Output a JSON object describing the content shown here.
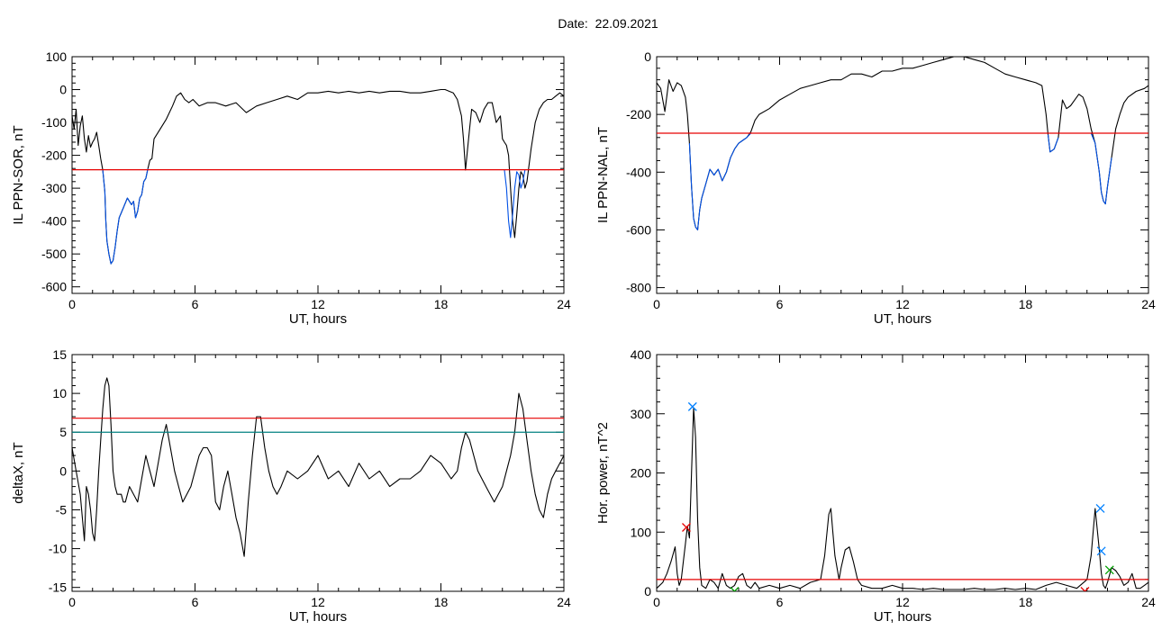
{
  "header": {
    "date_label": "Date:",
    "date_value": "22.09.2021"
  },
  "chart_data": [
    {
      "type": "line",
      "id": "sor",
      "ylabel": "IL PPN-SOR, nT",
      "xlabel": "UT, hours",
      "xlim": [
        0,
        24
      ],
      "ylim": [
        -620,
        100
      ],
      "xticks": [
        0,
        6,
        12,
        18,
        24
      ],
      "yticks": [
        100,
        0,
        -100,
        -200,
        -300,
        -400,
        -500,
        -600
      ],
      "threshold": {
        "value": -244,
        "color": "#e60000"
      },
      "series": [
        {
          "color": "#000000",
          "x": [
            0,
            0.1,
            0.2,
            0.3,
            0.4,
            0.5,
            0.6,
            0.7,
            0.8,
            0.9,
            1.0,
            1.1,
            1.2,
            1.3,
            1.4,
            1.5,
            1.6,
            1.65,
            1.7,
            1.8,
            1.9,
            2.0,
            2.1,
            2.2,
            2.3,
            2.5,
            2.7,
            2.9,
            3.0,
            3.1,
            3.2,
            3.3,
            3.4,
            3.5,
            3.6,
            3.7,
            3.8,
            3.9,
            4.0,
            4.3,
            4.6,
            4.9,
            5.1,
            5.3,
            5.5,
            5.7,
            5.9,
            6.2,
            6.6,
            7,
            7.5,
            8,
            8.5,
            9,
            9.5,
            10,
            10.5,
            11,
            11.5,
            12,
            12.5,
            13,
            13.5,
            14,
            14.5,
            15,
            15.5,
            16,
            16.5,
            17,
            17.5,
            18,
            18.2,
            18.4,
            18.6,
            18.8,
            19.0,
            19.1,
            19.2,
            19.3,
            19.4,
            19.5,
            19.7,
            19.9,
            20.1,
            20.3,
            20.5,
            20.7,
            20.9,
            21.0,
            21.1,
            21.2,
            21.3,
            21.4,
            21.5,
            21.6,
            21.7,
            21.8,
            21.9,
            22.0,
            22.1,
            22.2,
            22.4,
            22.6,
            22.8,
            23.0,
            23.2,
            23.4,
            23.6,
            23.8,
            24
          ],
          "y": [
            -80,
            -120,
            -60,
            -170,
            -110,
            -80,
            -150,
            -190,
            -140,
            -175,
            -160,
            -150,
            -130,
            -170,
            -210,
            -245,
            -310,
            -400,
            -460,
            -500,
            -530,
            -520,
            -480,
            -430,
            -390,
            -360,
            -330,
            -350,
            -340,
            -390,
            -370,
            -330,
            -320,
            -280,
            -270,
            -240,
            -215,
            -210,
            -150,
            -120,
            -90,
            -50,
            -20,
            -10,
            -30,
            -40,
            -30,
            -50,
            -40,
            -40,
            -50,
            -40,
            -70,
            -50,
            -40,
            -30,
            -20,
            -30,
            -10,
            -10,
            -5,
            -10,
            -5,
            -10,
            -5,
            -10,
            -5,
            -5,
            -10,
            -10,
            -5,
            0,
            0,
            -5,
            -10,
            -30,
            -80,
            -150,
            -245,
            -180,
            -120,
            -60,
            -70,
            -100,
            -60,
            -40,
            -40,
            -100,
            -80,
            -150,
            -160,
            -170,
            -200,
            -300,
            -400,
            -450,
            -380,
            -300,
            -250,
            -260,
            -300,
            -280,
            -180,
            -100,
            -60,
            -40,
            -30,
            -30,
            -20,
            -10,
            -20
          ]
        },
        {
          "color": "#0050e6",
          "x": [
            1.5,
            1.6,
            1.65,
            1.7,
            1.8,
            1.9,
            2.0,
            2.1,
            2.2,
            2.3,
            2.5,
            2.7,
            2.9,
            3.0,
            3.1,
            3.2,
            3.3,
            3.4,
            3.5,
            3.6,
            3.7
          ],
          "y": [
            -245,
            -310,
            -400,
            -460,
            -500,
            -530,
            -520,
            -480,
            -430,
            -390,
            -360,
            -330,
            -350,
            -340,
            -390,
            -370,
            -330,
            -320,
            -280,
            -270,
            -240
          ]
        },
        {
          "color": "#0050e6",
          "x": [
            21.1,
            21.2,
            21.3,
            21.4,
            21.5,
            21.6,
            21.7,
            21.8,
            21.9,
            22.0,
            22.1
          ],
          "y": [
            -245,
            -300,
            -400,
            -450,
            -380,
            -300,
            -250,
            -260,
            -300,
            -280,
            -245
          ]
        }
      ],
      "markers": []
    },
    {
      "type": "line",
      "id": "nal",
      "ylabel": "IL PPN-NAL, nT",
      "xlabel": "UT, hours",
      "xlim": [
        0,
        24
      ],
      "ylim": [
        -820,
        0
      ],
      "xticks": [
        0,
        6,
        12,
        18,
        24
      ],
      "yticks": [
        0,
        -200,
        -400,
        -600,
        -800
      ],
      "threshold": {
        "value": -265,
        "color": "#e60000"
      },
      "series": [
        {
          "color": "#000000",
          "x": [
            0,
            0.2,
            0.4,
            0.6,
            0.8,
            1.0,
            1.2,
            1.4,
            1.5,
            1.6,
            1.7,
            1.8,
            1.9,
            2.0,
            2.1,
            2.2,
            2.4,
            2.6,
            2.8,
            3.0,
            3.2,
            3.4,
            3.6,
            3.8,
            4.0,
            4.2,
            4.4,
            4.6,
            4.8,
            5.0,
            5.5,
            6,
            6.5,
            7,
            7.5,
            8,
            8.5,
            9,
            9.5,
            10,
            10.5,
            11,
            11.5,
            12,
            12.5,
            13,
            13.5,
            14,
            14.5,
            15,
            15.5,
            16,
            16.5,
            17,
            17.5,
            18,
            18.5,
            18.8,
            19.0,
            19.1,
            19.2,
            19.4,
            19.6,
            19.8,
            20.0,
            20.2,
            20.4,
            20.6,
            20.8,
            21.0,
            21.2,
            21.4,
            21.6,
            21.7,
            21.8,
            21.9,
            22.0,
            22.2,
            22.4,
            22.6,
            22.8,
            23.0,
            23.4,
            23.8,
            24
          ],
          "y": [
            -90,
            -110,
            -190,
            -80,
            -120,
            -90,
            -100,
            -140,
            -200,
            -300,
            -450,
            -560,
            -590,
            -600,
            -530,
            -490,
            -440,
            -390,
            -410,
            -390,
            -430,
            -400,
            -350,
            -320,
            -300,
            -290,
            -280,
            -260,
            -220,
            -200,
            -180,
            -150,
            -130,
            -110,
            -100,
            -90,
            -80,
            -80,
            -60,
            -60,
            -70,
            -50,
            -50,
            -40,
            -40,
            -30,
            -20,
            -10,
            0,
            0,
            -10,
            -20,
            -40,
            -60,
            -70,
            -80,
            -90,
            -100,
            -200,
            -270,
            -330,
            -320,
            -280,
            -150,
            -180,
            -170,
            -150,
            -130,
            -140,
            -180,
            -250,
            -300,
            -400,
            -470,
            -500,
            -510,
            -450,
            -350,
            -250,
            -200,
            -160,
            -140,
            -120,
            -110,
            -100
          ]
        },
        {
          "color": "#0050e6",
          "x": [
            1.6,
            1.7,
            1.8,
            1.9,
            2.0,
            2.1,
            2.2,
            2.4,
            2.6,
            2.8,
            3.0,
            3.2,
            3.4,
            3.6,
            3.8,
            4.0,
            4.2,
            4.4,
            4.6
          ],
          "y": [
            -300,
            -450,
            -560,
            -590,
            -600,
            -530,
            -490,
            -440,
            -390,
            -410,
            -390,
            -430,
            -400,
            -350,
            -320,
            -300,
            -290,
            -280,
            -265
          ]
        },
        {
          "color": "#0050e6",
          "x": [
            19.1,
            19.2,
            19.4,
            19.6
          ],
          "y": [
            -270,
            -330,
            -320,
            -280
          ]
        },
        {
          "color": "#0050e6",
          "x": [
            21.2,
            21.4,
            21.6,
            21.7,
            21.8,
            21.9,
            22.0,
            22.2
          ],
          "y": [
            -265,
            -300,
            -400,
            -470,
            -500,
            -510,
            -450,
            -350
          ]
        }
      ],
      "markers": []
    },
    {
      "type": "line",
      "id": "deltax",
      "ylabel": "deltaX, nT",
      "xlabel": "UT, hours",
      "xlim": [
        0,
        24
      ],
      "ylim": [
        -15.5,
        15
      ],
      "xticks": [
        0,
        6,
        12,
        18,
        24
      ],
      "yticks": [
        15,
        10,
        5,
        0,
        -5,
        -10,
        -15
      ],
      "threshold": {
        "value": 6.8,
        "color": "#e60000"
      },
      "threshold2": {
        "value": 5.0,
        "color": "#008080"
      },
      "series": [
        {
          "color": "#000000",
          "x": [
            0,
            0.2,
            0.4,
            0.5,
            0.6,
            0.7,
            0.8,
            0.9,
            1.0,
            1.1,
            1.2,
            1.3,
            1.4,
            1.5,
            1.6,
            1.7,
            1.8,
            1.9,
            2.0,
            2.1,
            2.2,
            2.3,
            2.4,
            2.5,
            2.6,
            2.8,
            3.0,
            3.2,
            3.4,
            3.6,
            3.8,
            4.0,
            4.2,
            4.4,
            4.6,
            4.8,
            5.0,
            5.2,
            5.4,
            5.6,
            5.8,
            6.0,
            6.2,
            6.4,
            6.6,
            6.8,
            7.0,
            7.2,
            7.4,
            7.6,
            7.8,
            8.0,
            8.2,
            8.4,
            8.6,
            8.8,
            9.0,
            9.2,
            9.4,
            9.6,
            9.8,
            10.0,
            10.2,
            10.5,
            11.0,
            11.5,
            12.0,
            12.5,
            13.0,
            13.5,
            14.0,
            14.5,
            15.0,
            15.5,
            16.0,
            16.5,
            17.0,
            17.5,
            18.0,
            18.5,
            18.8,
            19.0,
            19.2,
            19.4,
            19.6,
            19.8,
            20.0,
            20.2,
            20.4,
            20.6,
            20.8,
            21.0,
            21.2,
            21.4,
            21.6,
            21.8,
            22.0,
            22.2,
            22.4,
            22.6,
            22.8,
            23.0,
            23.2,
            23.4,
            23.6,
            23.8,
            24
          ],
          "y": [
            3,
            0,
            -3,
            -6,
            -9,
            -2,
            -3,
            -5,
            -8,
            -9,
            -5,
            0,
            4,
            8,
            11,
            12,
            11,
            6,
            0,
            -2,
            -3,
            -3,
            -3,
            -4,
            -4,
            -2,
            -3,
            -4,
            -1,
            2,
            0,
            -2,
            1,
            4,
            6,
            3,
            0,
            -2,
            -4,
            -3,
            -2,
            0,
            2,
            3,
            3,
            2,
            -4,
            -5,
            -2,
            0,
            -3,
            -6,
            -8,
            -11,
            -4,
            2,
            7,
            7,
            3,
            0,
            -2,
            -3,
            -2,
            0,
            -1,
            0,
            2,
            -1,
            0,
            -2,
            1,
            -1,
            0,
            -2,
            -1,
            -1,
            0,
            2,
            1,
            -1,
            0,
            3,
            5,
            4,
            2,
            0,
            -1,
            -2,
            -3,
            -4,
            -3,
            -2,
            0,
            2,
            5,
            10,
            8,
            4,
            0,
            -3,
            -5,
            -6,
            -3,
            -1,
            0,
            1,
            2
          ]
        }
      ],
      "markers": []
    },
    {
      "type": "line",
      "id": "power",
      "ylabel": "Hor. power, nT^2",
      "xlabel": "UT, hours",
      "xlim": [
        0,
        24
      ],
      "ylim": [
        0,
        400
      ],
      "xticks": [
        0,
        6,
        12,
        18,
        24
      ],
      "yticks": [
        400,
        300,
        200,
        100,
        0
      ],
      "threshold": {
        "value": 20,
        "color": "#e60000"
      },
      "series": [
        {
          "color": "#000000",
          "x": [
            0,
            0.3,
            0.5,
            0.7,
            0.9,
            1.0,
            1.1,
            1.2,
            1.3,
            1.4,
            1.5,
            1.6,
            1.7,
            1.8,
            1.9,
            2.0,
            2.1,
            2.2,
            2.4,
            2.6,
            2.8,
            3.0,
            3.2,
            3.4,
            3.6,
            3.8,
            4.0,
            4.2,
            4.4,
            4.6,
            4.8,
            5.0,
            5.5,
            6.0,
            6.5,
            7.0,
            7.5,
            8.0,
            8.2,
            8.4,
            8.5,
            8.6,
            8.7,
            8.8,
            8.9,
            9.0,
            9.2,
            9.4,
            9.6,
            9.8,
            10.0,
            10.5,
            11,
            11.5,
            12,
            12.5,
            13,
            13.5,
            14,
            14.5,
            15,
            15.5,
            16,
            16.5,
            17,
            17.5,
            18,
            18.5,
            19,
            19.5,
            20,
            20.5,
            21,
            21.2,
            21.4,
            21.6,
            21.7,
            21.8,
            21.9,
            22.0,
            22.2,
            22.4,
            22.6,
            22.8,
            23.0,
            23.2,
            23.4,
            23.6,
            23.8,
            24
          ],
          "y": [
            5,
            15,
            30,
            50,
            75,
            30,
            10,
            20,
            50,
            80,
            110,
            90,
            200,
            310,
            260,
            120,
            40,
            10,
            5,
            20,
            15,
            5,
            30,
            10,
            5,
            10,
            25,
            30,
            10,
            5,
            15,
            5,
            10,
            5,
            10,
            5,
            15,
            20,
            60,
            130,
            140,
            100,
            60,
            40,
            20,
            40,
            70,
            75,
            50,
            20,
            10,
            5,
            5,
            10,
            5,
            5,
            3,
            5,
            3,
            3,
            3,
            5,
            3,
            3,
            5,
            3,
            5,
            3,
            10,
            15,
            10,
            5,
            20,
            60,
            140,
            70,
            30,
            10,
            5,
            15,
            40,
            35,
            25,
            10,
            15,
            30,
            5,
            5,
            10,
            15
          ]
        }
      ],
      "markers": [
        {
          "x": 1.45,
          "y": 108,
          "color": "#e60000"
        },
        {
          "x": 1.75,
          "y": 312,
          "color": "#0080ff"
        },
        {
          "x": 21.65,
          "y": 140,
          "color": "#0080ff"
        },
        {
          "x": 21.7,
          "y": 68,
          "color": "#0080ff"
        },
        {
          "x": 22.1,
          "y": 36,
          "color": "#00a000"
        },
        {
          "x": 3.8,
          "y": 0,
          "color": "#00a000"
        },
        {
          "x": 20.9,
          "y": 0,
          "color": "#e60000"
        }
      ]
    }
  ]
}
